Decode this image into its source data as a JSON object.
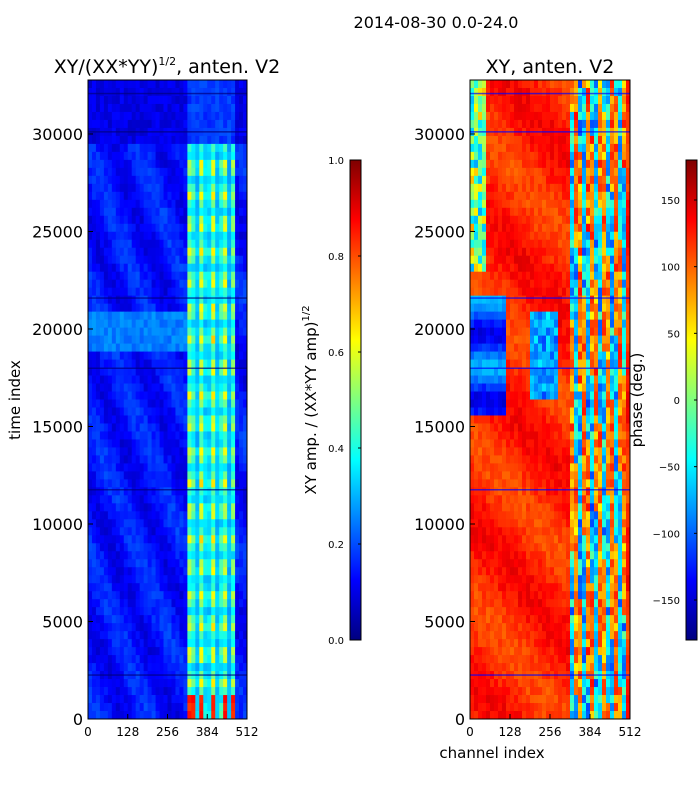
{
  "figure": {
    "suptitle": "2014-08-30 0.0-24.0"
  },
  "colors": {
    "jet": [
      "#00007f",
      "#0000ff",
      "#007fff",
      "#00ffff",
      "#7fff7f",
      "#ffff00",
      "#ff7f00",
      "#ff0000",
      "#7f0000"
    ],
    "background": "#ffffff",
    "axis": "#000000"
  },
  "chart_data": [
    {
      "type": "heatmap",
      "title": "XY/(XX*YY)^(1/2), anten. V2",
      "title_main": "XY/(XX*YY)",
      "title_exp": "1/2",
      "title_tail": ", anten. V2",
      "xlabel": "",
      "ylabel": "time index",
      "xlim": [
        0,
        512
      ],
      "ylim": [
        0,
        32768
      ],
      "x_ticks": [
        0,
        128,
        256,
        384,
        512
      ],
      "y_ticks": [
        0,
        5000,
        10000,
        15000,
        20000,
        25000,
        30000
      ],
      "colorbar": {
        "label": "XY amp. / (XX*YY amp)^(1/2)",
        "label_main": "XY amp. / (XX*YY amp)",
        "label_exp": "1/2",
        "range": [
          0.0,
          1.0
        ],
        "ticks": [
          "0.0",
          "0.2",
          "0.4",
          "0.6",
          "0.8",
          "1.0"
        ],
        "colormap": "jet"
      }
    },
    {
      "type": "heatmap",
      "title": "XY, anten. V2",
      "xlabel": "channel index",
      "ylabel": "",
      "xlim": [
        0,
        512
      ],
      "ylim": [
        0,
        32768
      ],
      "x_ticks": [
        0,
        128,
        256,
        384,
        512
      ],
      "y_ticks": [
        0,
        5000,
        10000,
        15000,
        20000,
        25000,
        30000
      ],
      "colorbar": {
        "label": "phase (deg.)",
        "range": [
          -180,
          180
        ],
        "ticks": [
          -150,
          -100,
          -50,
          0,
          50,
          100,
          150
        ],
        "colormap": "jet"
      }
    }
  ]
}
